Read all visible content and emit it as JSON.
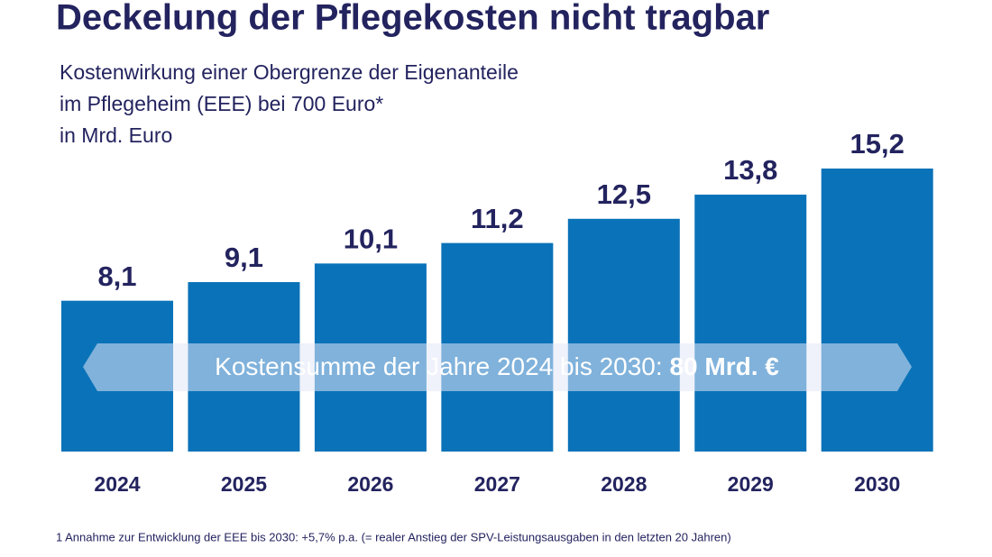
{
  "chart_data": {
    "type": "bar",
    "title": "Deckelung der Pflegekosten nicht tragbar",
    "subtitle": [
      "Kostenwirkung einer Obergrenze der Eigenanteile",
      "im Pflegeheim (EEE) bei 700 Euro*",
      "in Mrd. Euro"
    ],
    "categories": [
      "2024",
      "2025",
      "2026",
      "2027",
      "2028",
      "2029",
      "2030"
    ],
    "values": [
      8.1,
      9.1,
      10.1,
      11.2,
      12.5,
      13.8,
      15.2
    ],
    "value_labels": [
      "8,1",
      "9,1",
      "10,1",
      "11,2",
      "12,5",
      "13,8",
      "15,2"
    ],
    "color": "#0a72b8",
    "annotation": {
      "text": "Kostensumme der Jahre 2024 bis 2030:",
      "highlight": "80 Mrd. €"
    },
    "footnote": "1  Annahme zur Entwicklung der EEE bis 2030: +5,7% p.a. (= realer Anstieg der SPV-Leistungsausgaben in den letzten 20 Jahren)"
  }
}
